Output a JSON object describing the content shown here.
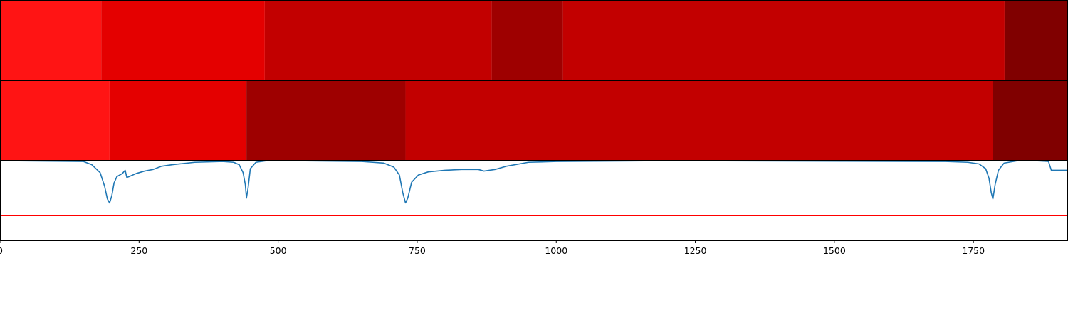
{
  "chart_data": [
    {
      "type": "heatmap",
      "xlim": [
        0,
        1920
      ],
      "segments": [
        {
          "start": 0,
          "end": 182,
          "color": "#ff1414"
        },
        {
          "start": 182,
          "end": 476,
          "color": "#e40000"
        },
        {
          "start": 476,
          "end": 884,
          "color": "#c20000"
        },
        {
          "start": 884,
          "end": 1012,
          "color": "#9e0000"
        },
        {
          "start": 1012,
          "end": 1806,
          "color": "#c20000"
        },
        {
          "start": 1806,
          "end": 1920,
          "color": "#800000"
        }
      ]
    },
    {
      "type": "heatmap",
      "xlim": [
        0,
        1920
      ],
      "segments": [
        {
          "start": 0,
          "end": 197,
          "color": "#ff1414"
        },
        {
          "start": 197,
          "end": 443,
          "color": "#e40000"
        },
        {
          "start": 443,
          "end": 729,
          "color": "#9e0000"
        },
        {
          "start": 729,
          "end": 1785,
          "color": "#c20000"
        },
        {
          "start": 1785,
          "end": 1920,
          "color": "#800000"
        }
      ]
    },
    {
      "type": "line",
      "xlim": [
        0,
        1920
      ],
      "ylim": [
        0,
        1
      ],
      "grid": false,
      "xticks": [
        0,
        250,
        500,
        750,
        1000,
        1250,
        1500,
        1750
      ],
      "threshold": {
        "y": 0.31,
        "color": "#ff0000"
      },
      "series": [
        {
          "color": "#1f77b4",
          "x": [
            0,
            150,
            165,
            180,
            188,
            193,
            197,
            201,
            205,
            210,
            220,
            225,
            228,
            232,
            245,
            260,
            275,
            290,
            310,
            350,
            400,
            420,
            430,
            437,
            441,
            443,
            446,
            450,
            460,
            480,
            520,
            650,
            690,
            708,
            718,
            724,
            729,
            733,
            740,
            752,
            770,
            800,
            830,
            860,
            870,
            890,
            910,
            950,
            1000,
            1200,
            1700,
            1740,
            1760,
            1772,
            1778,
            1782,
            1785,
            1789,
            1795,
            1805,
            1830,
            1860,
            1885,
            1890,
            1920
          ],
          "y": [
            1.0,
            0.99,
            0.95,
            0.85,
            0.68,
            0.52,
            0.47,
            0.56,
            0.72,
            0.8,
            0.84,
            0.88,
            0.79,
            0.8,
            0.84,
            0.87,
            0.89,
            0.93,
            0.95,
            0.98,
            0.99,
            0.98,
            0.95,
            0.85,
            0.7,
            0.53,
            0.66,
            0.9,
            0.98,
            1.0,
            1.0,
            0.99,
            0.97,
            0.92,
            0.82,
            0.6,
            0.47,
            0.53,
            0.73,
            0.82,
            0.86,
            0.88,
            0.89,
            0.89,
            0.87,
            0.89,
            0.93,
            0.98,
            0.99,
            1.0,
            0.99,
            0.98,
            0.96,
            0.9,
            0.78,
            0.6,
            0.52,
            0.7,
            0.88,
            0.97,
            1.0,
            1.0,
            0.99,
            0.88,
            0.88
          ]
        }
      ]
    }
  ]
}
